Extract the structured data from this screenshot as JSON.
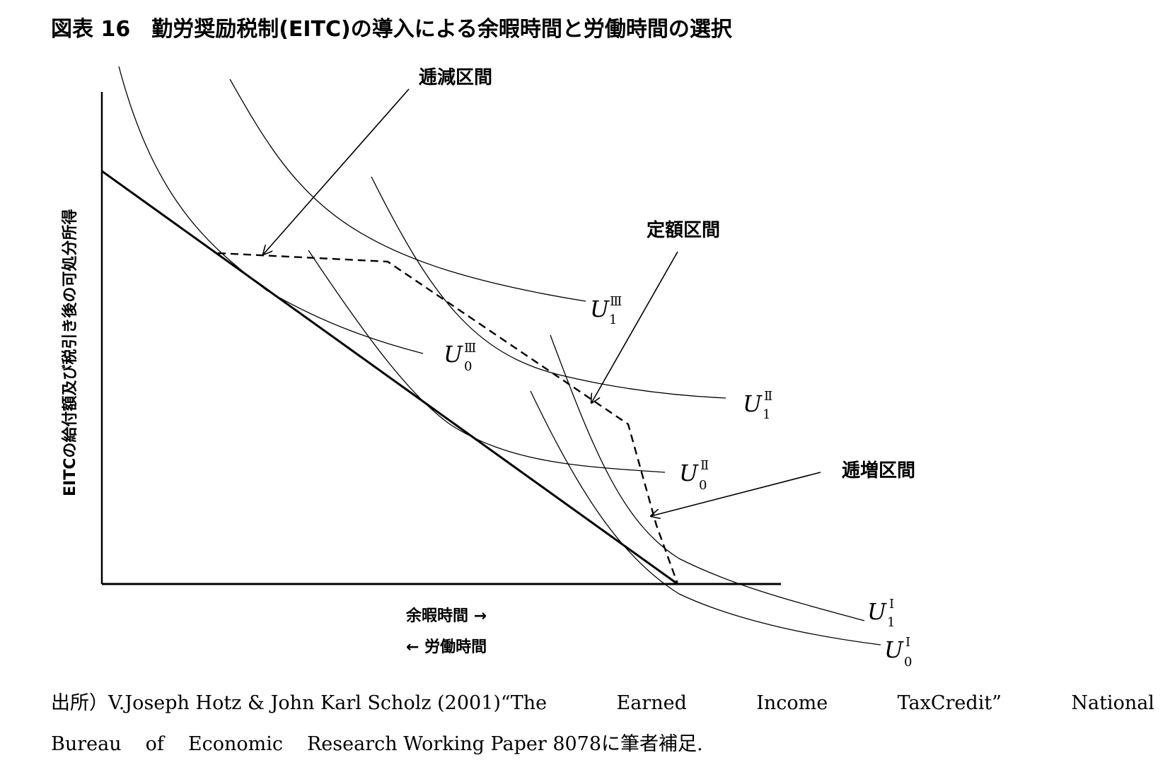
{
  "title": "図表 16　勤労奨励税制(EITC)の導入による余暇時間と労働時間の選択",
  "y_axis_label": "EITCの給付額及び税引き後の可処分所得",
  "x_axis_label_leisure": "余暇時間 →",
  "x_axis_label_work": "← 労働時間",
  "regions": {
    "phase_out": "逓減区間",
    "plateau": "定額区間",
    "phase_in": "逓増区間"
  },
  "curve_labels": [
    {
      "id": "U1-III",
      "main": "U",
      "sub": "1",
      "sup": "Ⅲ"
    },
    {
      "id": "U0-III",
      "main": "U",
      "sub": "0",
      "sup": "Ⅲ"
    },
    {
      "id": "U1-II",
      "main": "U",
      "sub": "1",
      "sup": "Ⅱ"
    },
    {
      "id": "U0-II",
      "main": "U",
      "sub": "0",
      "sup": "Ⅱ"
    },
    {
      "id": "U1-I",
      "main": "U",
      "sub": "1",
      "sup": "I"
    },
    {
      "id": "U0-I",
      "main": "U",
      "sub": "0",
      "sup": "I"
    }
  ],
  "source_line1": [
    "出所）V.Joseph Hotz & John Karl Scholz (2001)“The",
    "Earned",
    "Income",
    "TaxCredit”",
    "National"
  ],
  "source_line2": [
    "Bureau",
    "of",
    "Economic",
    "Research Working Paper 8078に筆者補足."
  ]
}
